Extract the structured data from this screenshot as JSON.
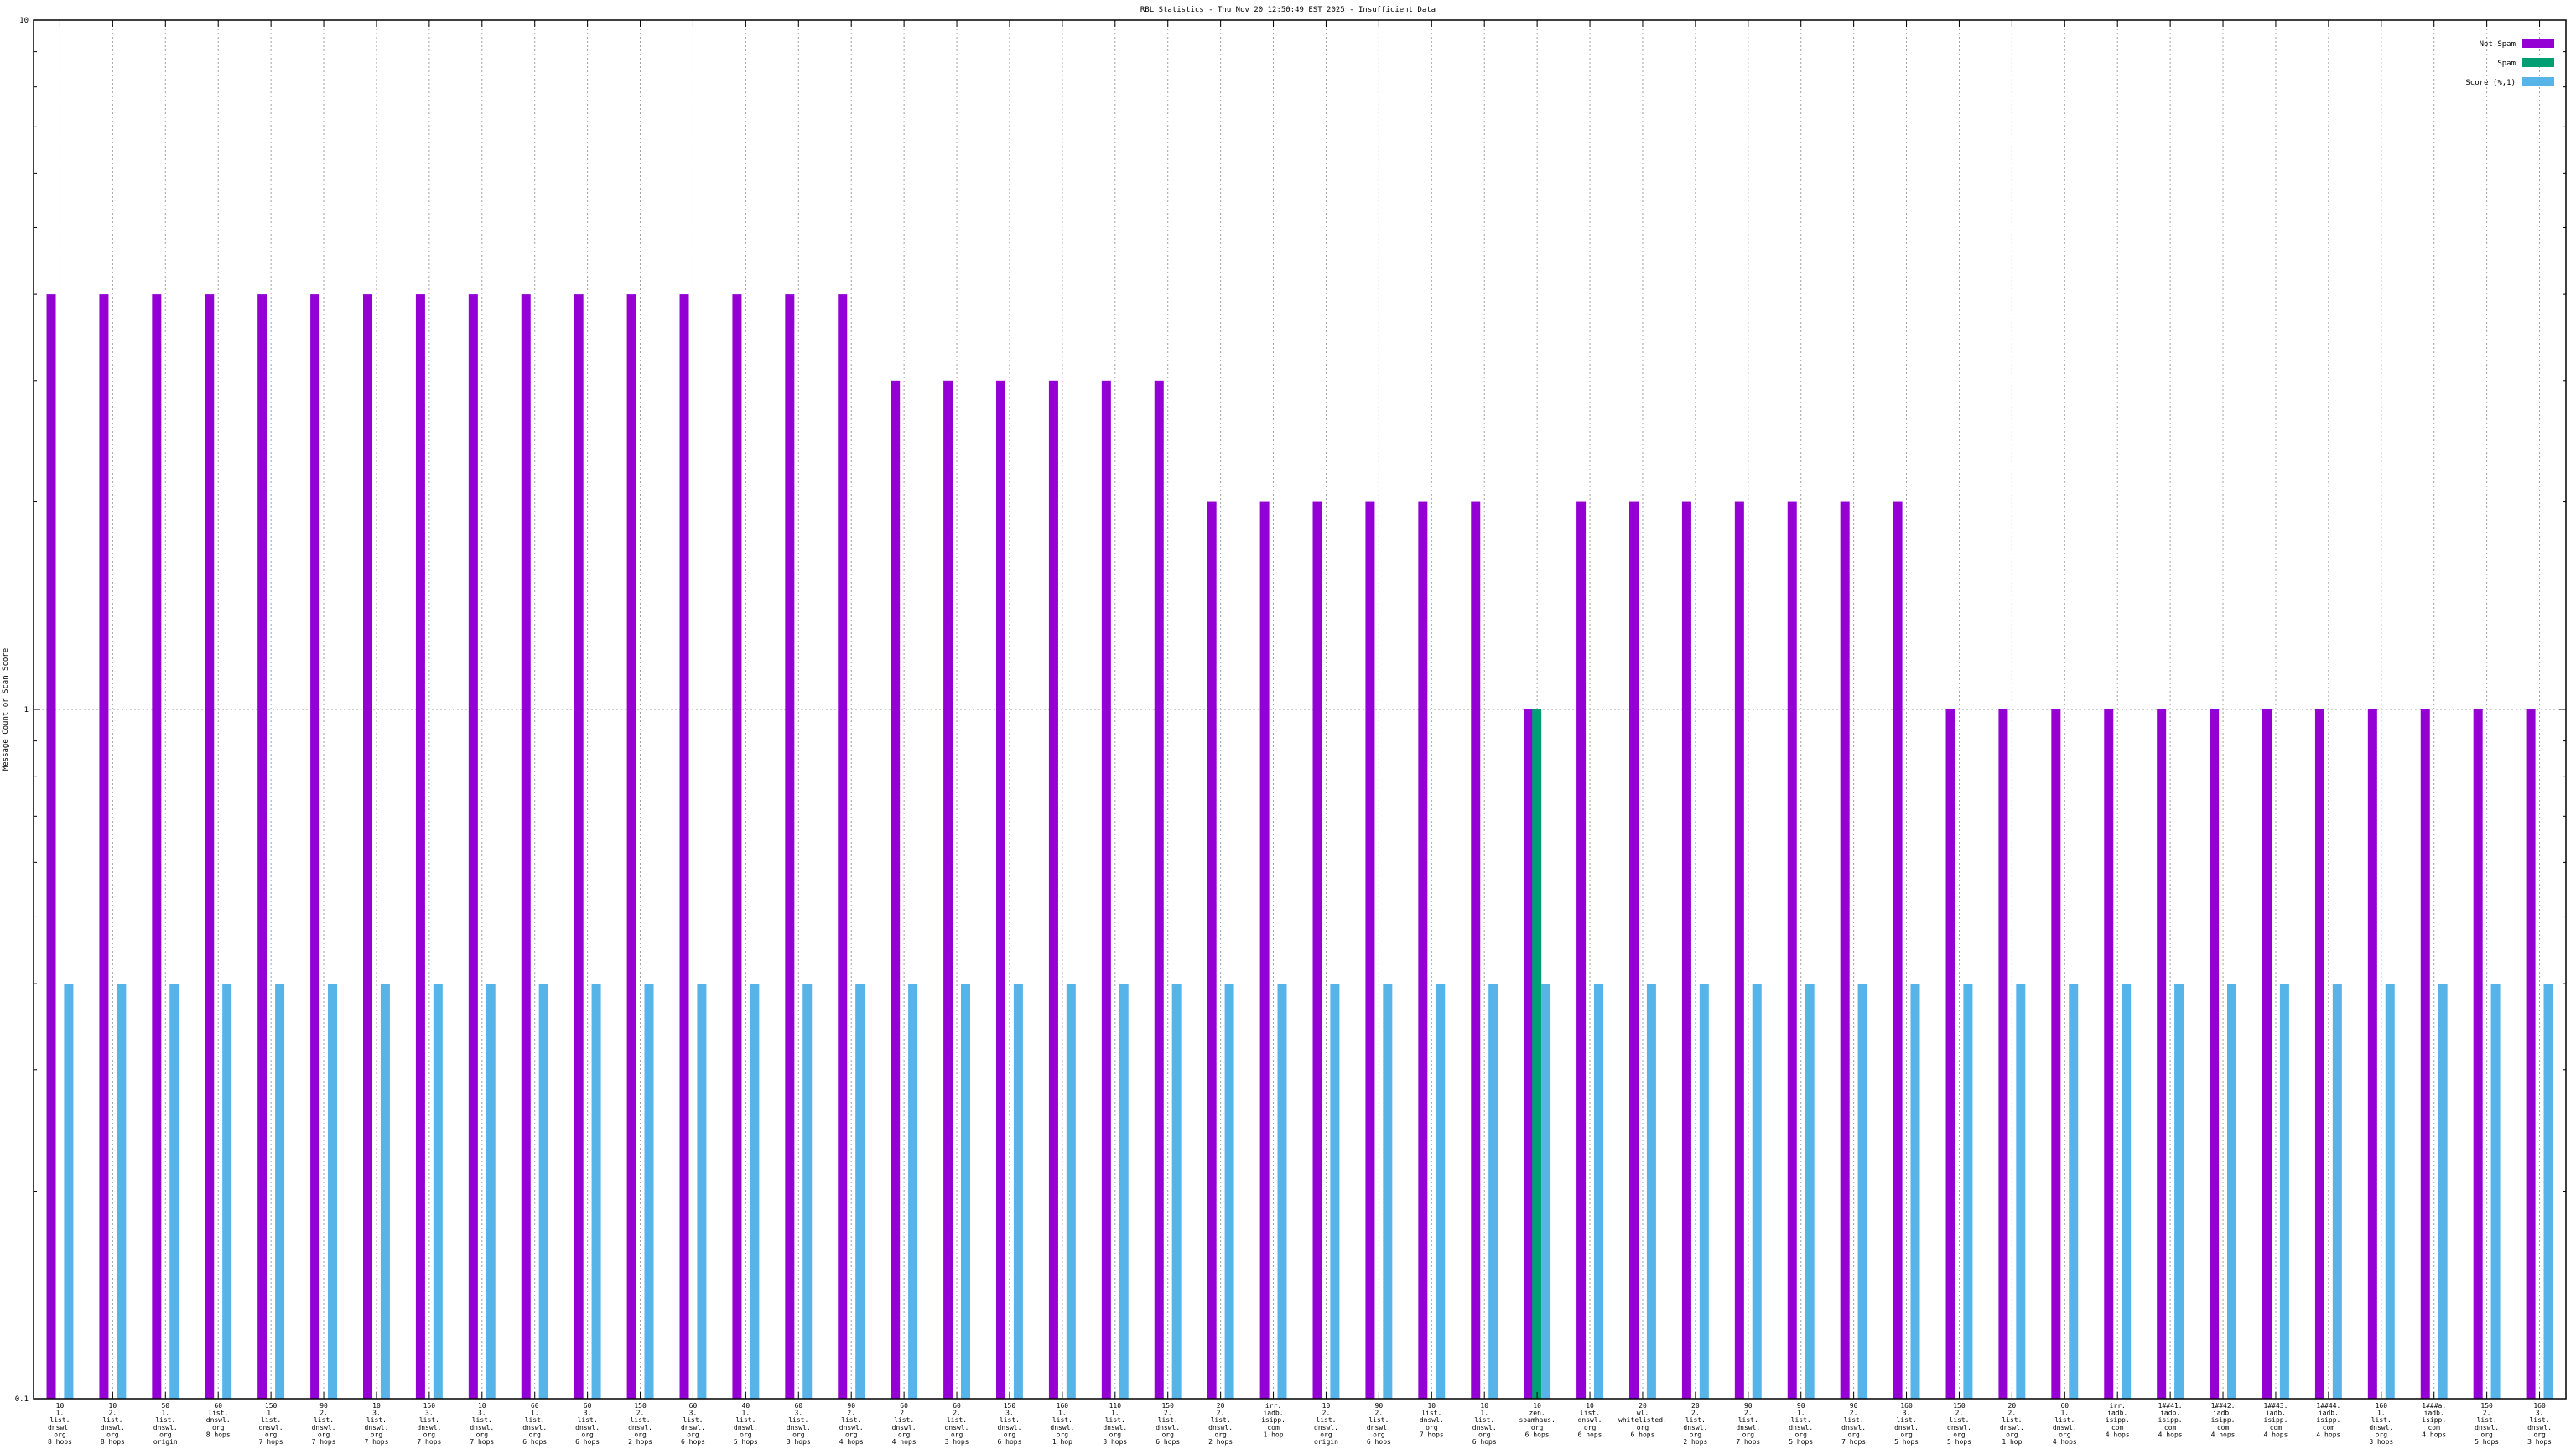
{
  "chart_data": {
    "type": "bar",
    "title": "RBL Statistics - Thu Nov 20 12:50:49 EST 2025 - Insufficient Data",
    "ylabel": "Message Count or Scan Score",
    "xlabel": "",
    "y_scale": "log",
    "ylim": [
      0.1,
      10
    ],
    "y_tick_labels": [
      "0.1",
      "1",
      "10"
    ],
    "grid": true,
    "legend_position": "top-right",
    "colors": {
      "not_spam": "#9400d3",
      "spam": "#009e73",
      "score": "#56b4e9"
    },
    "categories": [
      [
        "10",
        "1.",
        "list.",
        "dnswl.",
        "org",
        "8 hops"
      ],
      [
        "10",
        "2.",
        "list.",
        "dnswl.",
        "org",
        "8 hops"
      ],
      [
        "50",
        "1.",
        "list.",
        "dnswl.",
        "org",
        "origin"
      ],
      [
        "60",
        "list.",
        "dnswl.",
        "org",
        "8 hops"
      ],
      [
        "150",
        "1.",
        "list.",
        "dnswl.",
        "org",
        "7 hops"
      ],
      [
        "90",
        "2.",
        "list.",
        "dnswl.",
        "org",
        "7 hops"
      ],
      [
        "10",
        "3.",
        "list.",
        "dnswl.",
        "org",
        "7 hops"
      ],
      [
        "150",
        "3.",
        "list.",
        "dnswl.",
        "org",
        "7 hops"
      ],
      [
        "10",
        "3.",
        "list.",
        "dnswl.",
        "org",
        "7 hops"
      ],
      [
        "60",
        "1.",
        "list.",
        "dnswl.",
        "org",
        "6 hops"
      ],
      [
        "60",
        "3.",
        "list.",
        "dnswl.",
        "org",
        "6 hops"
      ],
      [
        "150",
        "2.",
        "list.",
        "dnswl.",
        "org",
        "2 hops"
      ],
      [
        "60",
        "3.",
        "list.",
        "dnswl.",
        "org",
        "6 hops"
      ],
      [
        "40",
        "1.",
        "list.",
        "dnswl.",
        "org",
        "5 hops"
      ],
      [
        "60",
        "3.",
        "list.",
        "dnswl.",
        "org",
        "3 hops"
      ],
      [
        "90",
        "2.",
        "list.",
        "dnswl.",
        "org",
        "4 hops"
      ],
      [
        "60",
        "2.",
        "list.",
        "dnswl.",
        "org",
        "4 hops"
      ],
      [
        "60",
        "2.",
        "list.",
        "dnswl.",
        "org",
        "3 hops"
      ],
      [
        "150",
        "3.",
        "list.",
        "dnswl.",
        "org",
        "6 hops"
      ],
      [
        "160",
        "1.",
        "list.",
        "dnswl.",
        "org",
        "1 hop"
      ],
      [
        "110",
        "1.",
        "list.",
        "dnswl.",
        "org",
        "3 hops"
      ],
      [
        "150",
        "2.",
        "list.",
        "dnswl.",
        "org",
        "6 hops"
      ],
      [
        "20",
        "2.",
        "list.",
        "dnswl.",
        "org",
        "2 hops"
      ],
      [
        "irr.",
        "iadb.",
        "isipp.",
        "com",
        "1 hop"
      ],
      [
        "10",
        "2.",
        "list.",
        "dnswl.",
        "org",
        "origin"
      ],
      [
        "90",
        "2.",
        "list.",
        "dnswl.",
        "org",
        "6 hops"
      ],
      [
        "10",
        "list.",
        "dnswl.",
        "org",
        "7 hops"
      ],
      [
        "10",
        "1.",
        "list.",
        "dnswl.",
        "org",
        "6 hops"
      ],
      [
        "10",
        "zen.",
        "spamhaus.",
        "org",
        "6 hops"
      ],
      [
        "10",
        "list.",
        "dnswl.",
        "org",
        "6 hops"
      ],
      [
        "20",
        "wl.",
        "whitelisted.",
        "org",
        "6 hops"
      ],
      [
        "20",
        "2.",
        "list.",
        "dnswl.",
        "org",
        "2 hops"
      ],
      [
        "90",
        "2.",
        "list.",
        "dnswl.",
        "org",
        "7 hops"
      ],
      [
        "90",
        "1.",
        "list.",
        "dnswl.",
        "org",
        "5 hops"
      ],
      [
        "90",
        "2.",
        "list.",
        "dnswl.",
        "org",
        "7 hops"
      ],
      [
        "160",
        "3.",
        "list.",
        "dnswl.",
        "org",
        "5 hops"
      ],
      [
        "150",
        "2.",
        "list.",
        "dnswl.",
        "org",
        "5 hops"
      ],
      [
        "20",
        "2.",
        "list.",
        "dnswl.",
        "org",
        "1 hop"
      ],
      [
        "60",
        "1.",
        "list.",
        "dnswl.",
        "org",
        "4 hops"
      ],
      [
        "irr.",
        "iadb.",
        "isipp.",
        "com",
        "4 hops"
      ],
      [
        "1##41.",
        "iadb.",
        "isipp.",
        "com",
        "4 hops"
      ],
      [
        "1##42.",
        "iadb.",
        "isipp.",
        "com",
        "4 hops"
      ],
      [
        "1##43.",
        "iadb.",
        "isipp.",
        "com",
        "4 hops"
      ],
      [
        "1##44.",
        "iadb.",
        "isipp.",
        "com",
        "4 hops"
      ],
      [
        "160",
        "1.",
        "list.",
        "dnswl.",
        "org",
        "3 hops"
      ],
      [
        "1###a.",
        "iadb.",
        "isipp.",
        "com",
        "4 hops"
      ],
      [
        "150",
        "2.",
        "list.",
        "dnswl.",
        "org",
        "5 hops"
      ],
      [
        "160",
        "3.",
        "list.",
        "dnswl.",
        "org",
        "3 hops"
      ]
    ],
    "series": [
      {
        "name": "Not Spam",
        "values": [
          4,
          4,
          4,
          4,
          4,
          4,
          4,
          4,
          4,
          4,
          4,
          4,
          4,
          4,
          4,
          4,
          3,
          3,
          3,
          3,
          3,
          3,
          2,
          2,
          2,
          2,
          2,
          2,
          1,
          2,
          2,
          2,
          2,
          2,
          2,
          2,
          1,
          1,
          1,
          1,
          1,
          1,
          1,
          1,
          1,
          1,
          1,
          1
        ]
      },
      {
        "name": "Spam",
        "values": [
          0,
          0,
          0,
          0,
          0,
          0,
          0,
          0,
          0,
          0,
          0,
          0,
          0,
          0,
          0,
          0,
          0,
          0,
          0,
          0,
          0,
          0,
          0,
          0,
          0,
          0,
          0,
          0,
          1,
          0,
          0,
          0,
          0,
          0,
          0,
          0,
          0,
          0,
          0,
          0,
          0,
          0,
          0,
          0,
          0,
          0,
          0,
          0
        ]
      },
      {
        "name": "Score (%,1)",
        "values": [
          0.4,
          0.4,
          0.4,
          0.4,
          0.4,
          0.4,
          0.4,
          0.4,
          0.4,
          0.4,
          0.4,
          0.4,
          0.4,
          0.4,
          0.4,
          0.4,
          0.4,
          0.4,
          0.4,
          0.4,
          0.4,
          0.4,
          0.4,
          0.4,
          0.4,
          0.4,
          0.4,
          0.4,
          0.4,
          0.4,
          0.4,
          0.4,
          0.4,
          0.4,
          0.4,
          0.4,
          0.4,
          0.4,
          0.4,
          0.4,
          0.4,
          0.4,
          0.4,
          0.4,
          0.4,
          0.4,
          0.4,
          0.4
        ]
      }
    ]
  }
}
